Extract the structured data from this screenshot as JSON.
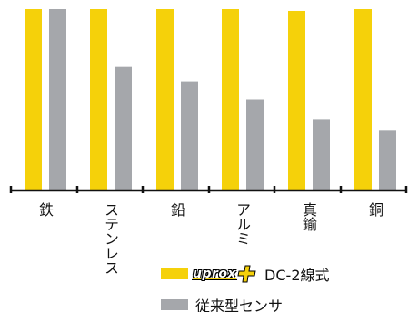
{
  "chart_data": {
    "type": "bar",
    "categories": [
      "鉄",
      "ステンレス",
      "鉛",
      "アルミ",
      "真鍮",
      "銅"
    ],
    "series": [
      {
        "name": "uprox DC-2線式",
        "color": "#f5d10a",
        "values": [
          100,
          100,
          100,
          100,
          99,
          100
        ]
      },
      {
        "name": "従来型センサ",
        "color": "#a5a7ab",
        "values": [
          100,
          68,
          60,
          50,
          39,
          33
        ]
      }
    ],
    "title": "",
    "xlabel": "",
    "ylabel": "",
    "ylim": [
      0,
      100
    ],
    "grid": false,
    "legend_position": "bottom-right"
  },
  "legend": {
    "brand_text": "uprox",
    "brand_plus_icon": "plus-icon",
    "item1_text": "DC-2線式",
    "item2_text": "従来型センサ"
  }
}
